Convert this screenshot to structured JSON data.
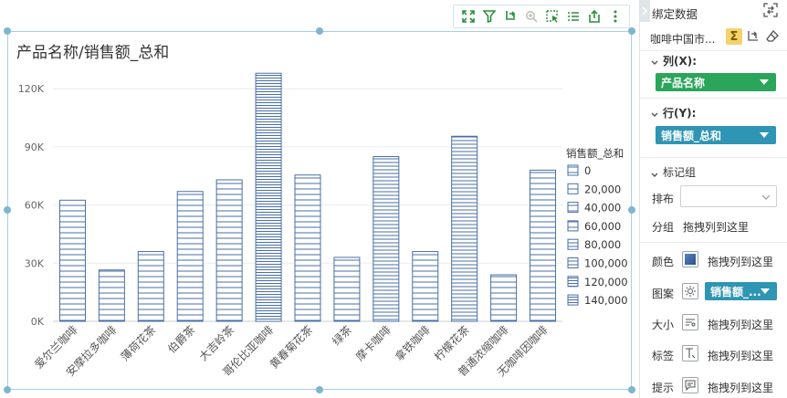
{
  "chart": {
    "title": "产品名称/销售额_总和",
    "toolbar_icons": [
      "expand-icon",
      "filter-icon",
      "rotate-icon",
      "zoom-icon",
      "select-icon",
      "list-icon",
      "export-icon",
      "more-icon"
    ]
  },
  "chart_data": {
    "type": "bar",
    "categories": [
      "爱尔兰咖啡",
      "安摩拉多咖啡",
      "薄荷花茶",
      "伯爵茶",
      "大吉岭茶",
      "哥伦比亚咖啡",
      "黄春菊花茶",
      "绿茶",
      "摩卡咖啡",
      "拿铁咖啡",
      "柠檬花茶",
      "普通浓缩咖啡",
      "无咖啡因咖啡"
    ],
    "values": [
      62500,
      26500,
      36000,
      67000,
      73000,
      128000,
      75500,
      33000,
      85000,
      36000,
      95500,
      24000,
      78000
    ],
    "y_ticks": [
      "0K",
      "30K",
      "60K",
      "90K",
      "120K"
    ],
    "ylim": [
      0,
      130000
    ],
    "grid": true,
    "legend": {
      "title": "销售额_总和",
      "placement": "right",
      "entries": [
        "0",
        "20,000",
        "40,000",
        "60,000",
        "80,000",
        "100,000",
        "120,000",
        "140,000"
      ]
    },
    "bar_color": "#4a6fa5"
  },
  "panel": {
    "title": "绑定数据",
    "dataset": "咖啡中国市...",
    "columns_label": "列(X):",
    "columns_field": "产品名称",
    "columns_color": "#2aa55a",
    "rows_label": "行(Y):",
    "rows_field": "销售额_总和",
    "rows_color": "#2f95b4",
    "marks_label": "标记组",
    "layout_label": "排布",
    "layout_value": "",
    "group_label": "分组",
    "group_drop": "拖拽列到这里",
    "color_label": "颜色",
    "color_drop": "拖拽列到这里",
    "pattern_label": "图案",
    "pattern_field": "销售额_...",
    "size_label": "大小",
    "size_drop": "拖拽列到这里",
    "tag_label": "标签",
    "tag_drop": "拖拽列到这里",
    "tooltip_label": "提示",
    "tooltip_drop": "拖拽列到这里"
  }
}
